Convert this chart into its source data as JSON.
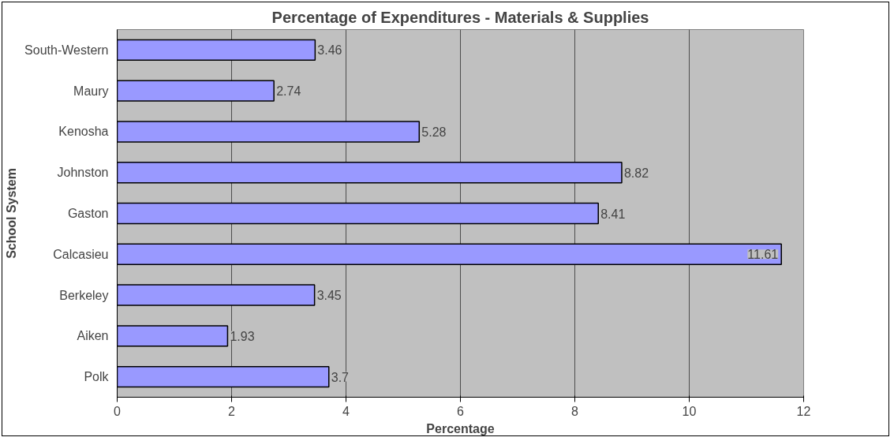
{
  "chart_data": {
    "type": "bar",
    "orientation": "horizontal",
    "title": "Percentage of Expenditures - Materials & Supplies",
    "xlabel": "Percentage",
    "ylabel": "School System",
    "categories": [
      "South-Western",
      "Maury",
      "Kenosha",
      "Johnston",
      "Gaston",
      "Calcasieu",
      "Berkeley",
      "Aiken",
      "Polk"
    ],
    "values": [
      3.46,
      2.74,
      5.28,
      8.82,
      8.41,
      11.61,
      3.45,
      1.93,
      3.7
    ],
    "color": "#9999ff",
    "xlim": [
      0,
      12
    ],
    "xticks": [
      0,
      2,
      4,
      6,
      8,
      10,
      12
    ],
    "grid": "x",
    "data_labels": true
  }
}
